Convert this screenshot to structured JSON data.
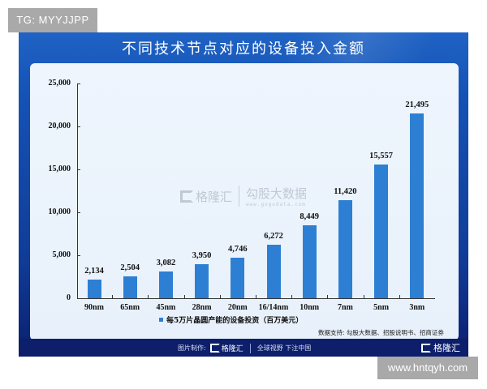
{
  "badges": {
    "top_left": "TG: MYYJJPP",
    "bottom_right": "www.hntqyh.com"
  },
  "header": {
    "title": "不同技术节点对应的设备投入金额"
  },
  "watermark": {
    "logo_text": "格隆汇",
    "brand_cn": "勾股大数据",
    "brand_url": "www.gogudata.com"
  },
  "footer": {
    "made_by_label": "图片制作:",
    "made_by_logo": "格隆汇",
    "slogan": "全球视野 下注中国",
    "corner_logo": "格隆汇"
  },
  "source_note": "数据支持: 勾股大数据、招股说明书、招商证券",
  "colors": {
    "bar": "#2d7fd3",
    "frame": "#1552b5",
    "footer": "#0d1f6b",
    "panel": "#eef5fd"
  },
  "chart_data": {
    "type": "bar",
    "title": "不同技术节点对应的设备投入金额",
    "categories": [
      "90nm",
      "65nm",
      "45nm",
      "28nm",
      "20nm",
      "16/14nm",
      "10nm",
      "7nm",
      "5nm",
      "3nm"
    ],
    "series": [
      {
        "name": "每5万片晶圆产能的设备投资（百万美元）",
        "values": [
          2134,
          2504,
          3082,
          3950,
          4746,
          6272,
          8449,
          11420,
          15557,
          21495
        ],
        "value_labels": [
          "2,134",
          "2,504",
          "3,082",
          "3,950",
          "4,746",
          "6,272",
          "8,449",
          "11,420",
          "15,557",
          "21,495"
        ]
      }
    ],
    "xlabel": "",
    "ylabel": "",
    "ylim": [
      0,
      25000
    ],
    "yticks": [
      0,
      5000,
      10000,
      15000,
      20000,
      25000
    ],
    "ytick_labels": [
      "0",
      "5,000",
      "10,000",
      "15,000",
      "20,000",
      "25,000"
    ],
    "grid": false,
    "legend_position": "bottom",
    "annotations": [
      "数据支持: 勾股大数据、招股说明书、招商证券"
    ]
  }
}
